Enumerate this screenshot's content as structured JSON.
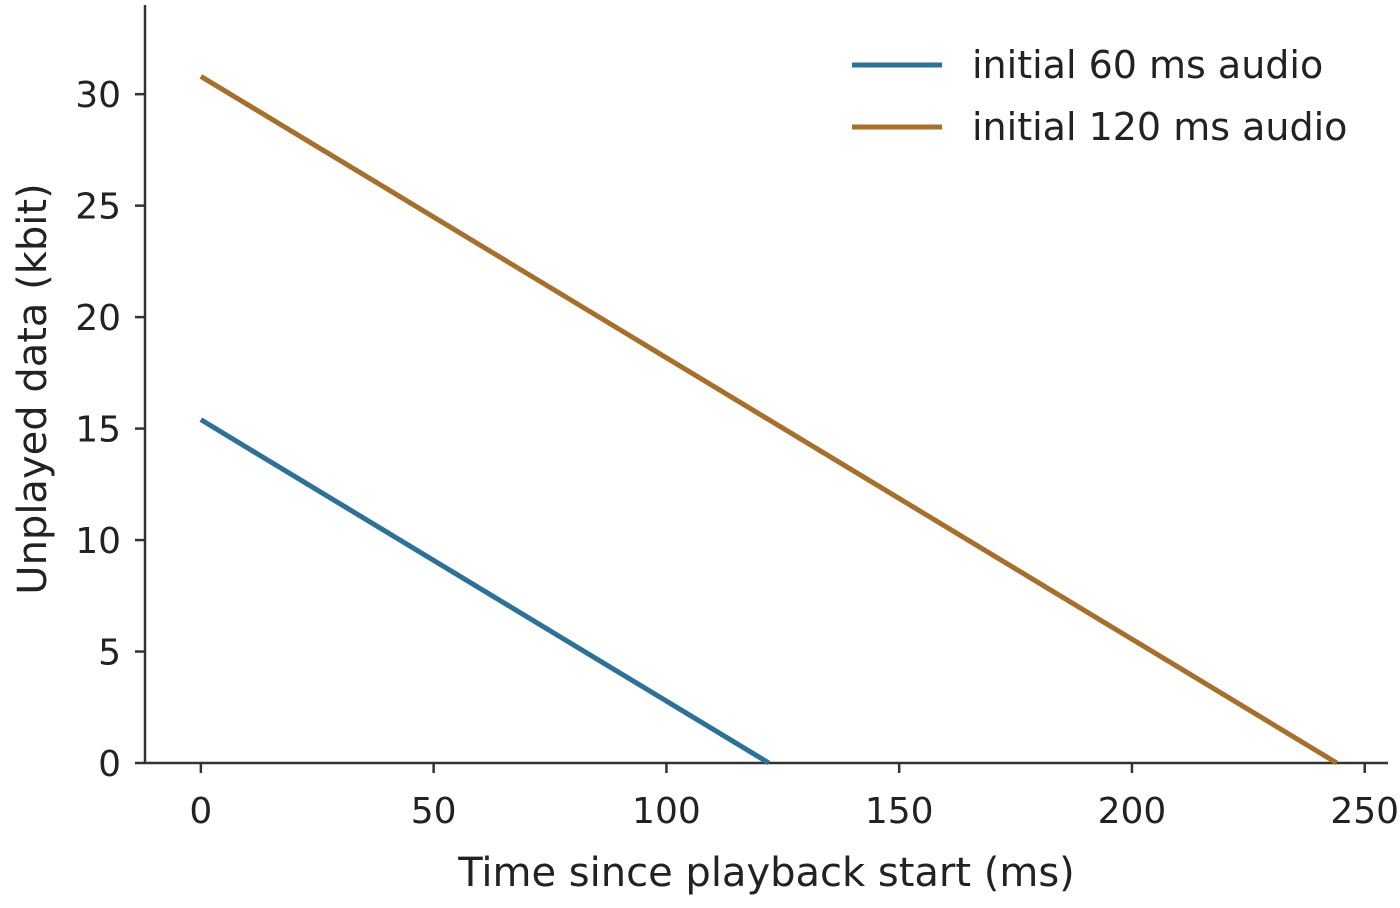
{
  "chart_data": {
    "type": "line",
    "title": "",
    "xlabel": "Time since playback start (ms)",
    "ylabel": "Unplayed data (kbit)",
    "xlim": [
      -12,
      255
    ],
    "ylim": [
      0,
      34
    ],
    "xticks": [
      0,
      50,
      100,
      150,
      200,
      250
    ],
    "yticks": [
      0,
      5,
      10,
      15,
      20,
      25,
      30
    ],
    "grid": false,
    "legend_position": "top-right",
    "series": [
      {
        "name": "initial 60 ms audio",
        "color": "#2E7196",
        "x": [
          0,
          122
        ],
        "y": [
          15.4,
          0
        ]
      },
      {
        "name": "initial 120 ms audio",
        "color": "#A66F2B",
        "x": [
          0,
          244
        ],
        "y": [
          30.8,
          0
        ]
      }
    ]
  }
}
